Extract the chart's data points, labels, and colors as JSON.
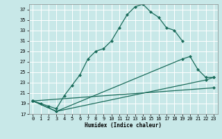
{
  "xlabel": "Humidex (Indice chaleur)",
  "bg_color": "#c8e8e8",
  "grid_color": "#ffffff",
  "line_color": "#1a6b5a",
  "xlim": [
    -0.5,
    23.5
  ],
  "ylim": [
    17,
    38
  ],
  "xticks": [
    0,
    1,
    2,
    3,
    4,
    5,
    6,
    7,
    8,
    9,
    10,
    11,
    12,
    13,
    14,
    15,
    16,
    17,
    18,
    19,
    20,
    21,
    22,
    23
  ],
  "yticks": [
    17,
    19,
    21,
    23,
    25,
    27,
    29,
    31,
    33,
    35,
    37
  ],
  "line1_x": [
    0,
    1,
    2,
    3,
    4,
    5,
    6,
    7,
    8,
    9,
    10,
    11,
    12,
    13,
    14,
    15,
    16,
    17,
    18,
    19
  ],
  "line1_y": [
    19.5,
    19.0,
    18.5,
    18.0,
    20.5,
    22.5,
    24.5,
    27.5,
    29.0,
    29.5,
    31.0,
    33.5,
    36.0,
    37.5,
    38.0,
    36.5,
    35.5,
    33.5,
    33.0,
    31.0
  ],
  "line2_x": [
    0,
    3,
    19,
    20,
    21,
    22,
    23
  ],
  "line2_y": [
    19.5,
    17.5,
    27.5,
    28.0,
    25.5,
    24.0,
    24.0
  ],
  "line3_x": [
    0,
    3,
    22,
    23
  ],
  "line3_y": [
    19.5,
    17.5,
    23.5,
    24.0
  ],
  "line4_x": [
    0,
    23
  ],
  "line4_y": [
    19.5,
    22.0
  ]
}
